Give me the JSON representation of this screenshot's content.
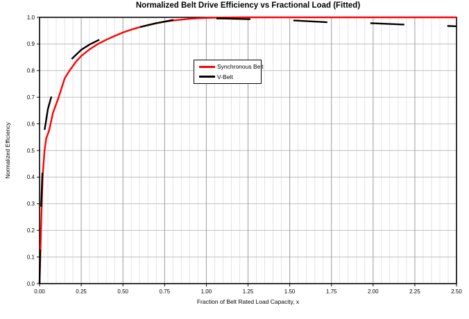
{
  "chart": {
    "title": "Normalized Belt Drive Efficiency vs Fractional Load (Fitted)",
    "x_axis_label": "Fraction of Belt Rated Load Capacity, x",
    "y_axis_label": "Normalized Efficiency"
  },
  "legend": {
    "items": [
      {
        "label": "Synchronous Belt",
        "color": "#ff0000"
      },
      {
        "label": "V-Belt",
        "color": "#000000"
      }
    ]
  },
  "chart_data": {
    "type": "line",
    "title": "Normalized Belt Drive Efficiency vs Fractional Load (Fitted)",
    "xlabel": "Fraction of Belt Rated Load Capacity, x",
    "ylabel": "Normalized Efficiency",
    "xlim": [
      0,
      2.5
    ],
    "ylim": [
      0,
      1.0
    ],
    "x_tick_values": [
      0,
      0.25,
      0.5,
      0.75,
      1.0,
      1.25,
      1.5,
      1.75,
      2.0,
      2.25,
      2.5
    ],
    "x_tick_labels": [
      "0.00",
      "0.25",
      "0.50",
      "0.75",
      "1.00",
      "1.25",
      "1.50",
      "1.75",
      "2.00",
      "2.25",
      "2.50"
    ],
    "y_tick_values": [
      0,
      0.1,
      0.2,
      0.3,
      0.4,
      0.5,
      0.6,
      0.7,
      0.8,
      0.9,
      1.0
    ],
    "y_tick_labels": [
      "0.0",
      "0.1",
      "0.2",
      "0.3",
      "0.4",
      "0.5",
      "0.6",
      "0.7",
      "0.8",
      "0.9",
      "1.0"
    ],
    "x_minor_step": 0.05,
    "grid": {
      "vertical_minor": true,
      "vertical_major": true,
      "horizontal_major": true,
      "horizontal_minor": false,
      "minor_color": "#e4e4e4",
      "major_x_color": "#9c9c9c",
      "major_y_color": "#bdbdbd"
    },
    "legend_position": "upper-middle-left",
    "series": [
      {
        "name": "Synchronous Belt",
        "color": "#ff0000",
        "style": "solid",
        "line_width": 2.4,
        "points": [
          [
            0,
            0
          ],
          [
            0.004,
            0.09
          ],
          [
            0.008,
            0.185
          ],
          [
            0.013,
            0.29
          ],
          [
            0.019,
            0.41
          ],
          [
            0.03,
            0.5
          ],
          [
            0.04,
            0.545
          ],
          [
            0.058,
            0.576
          ],
          [
            0.08,
            0.64
          ],
          [
            0.115,
            0.7
          ],
          [
            0.15,
            0.77
          ],
          [
            0.18,
            0.8
          ],
          [
            0.22,
            0.835
          ],
          [
            0.25,
            0.855
          ],
          [
            0.3,
            0.88
          ],
          [
            0.35,
            0.9
          ],
          [
            0.4,
            0.916
          ],
          [
            0.45,
            0.93
          ],
          [
            0.5,
            0.943
          ],
          [
            0.55,
            0.954
          ],
          [
            0.6,
            0.963
          ],
          [
            0.65,
            0.971
          ],
          [
            0.7,
            0.978
          ],
          [
            0.75,
            0.9835
          ],
          [
            0.8,
            0.988
          ],
          [
            0.85,
            0.9915
          ],
          [
            0.9,
            0.9945
          ],
          [
            0.95,
            0.9965
          ],
          [
            1.0,
            0.998
          ],
          [
            1.1,
            0.9995
          ],
          [
            1.25,
            1.0
          ],
          [
            1.5,
            1.0
          ],
          [
            2.0,
            1.0
          ],
          [
            2.5,
            1.0
          ]
        ]
      },
      {
        "name": "V-Belt",
        "color": "#000000",
        "style": "dashed",
        "line_width": 2.4,
        "dash": [
          49,
          62
        ],
        "points": [
          [
            0,
            0
          ],
          [
            0.003,
            0.1
          ],
          [
            0.005,
            0.16
          ],
          [
            0.008,
            0.24
          ],
          [
            0.01,
            0.3
          ],
          [
            0.015,
            0.385
          ],
          [
            0.02,
            0.46
          ],
          [
            0.03,
            0.576
          ],
          [
            0.05,
            0.655
          ],
          [
            0.07,
            0.7
          ],
          [
            0.1,
            0.752
          ],
          [
            0.15,
            0.81
          ],
          [
            0.195,
            0.845
          ],
          [
            0.25,
            0.878
          ],
          [
            0.3,
            0.898
          ],
          [
            0.356,
            0.915
          ],
          [
            0.45,
            0.942
          ],
          [
            0.52,
            0.954
          ],
          [
            0.6,
            0.963
          ],
          [
            0.7,
            0.978
          ],
          [
            0.8,
            0.99
          ],
          [
            0.9,
            0.9935
          ],
          [
            1.0,
            0.9955
          ],
          [
            1.1,
            0.9955
          ],
          [
            1.27,
            0.993
          ],
          [
            1.4,
            0.9905
          ],
          [
            1.53,
            0.988
          ],
          [
            1.73,
            0.9815
          ],
          [
            1.85,
            0.98
          ],
          [
            2.0,
            0.9775
          ],
          [
            2.2,
            0.9725
          ],
          [
            2.35,
            0.97
          ],
          [
            2.5,
            0.9665
          ]
        ]
      }
    ]
  }
}
